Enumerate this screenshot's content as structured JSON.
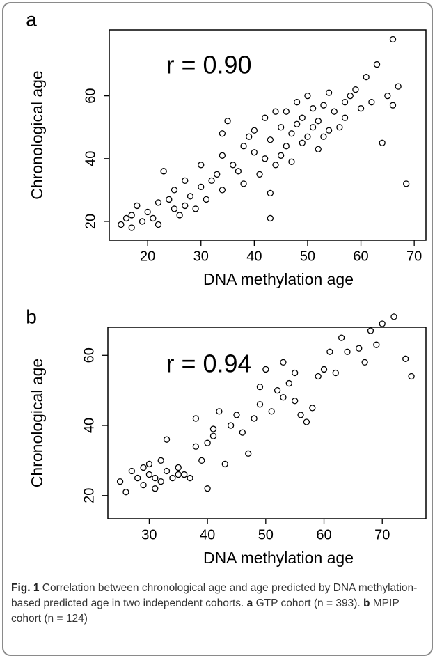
{
  "chart_data": [
    {
      "type": "scatter",
      "panel_label": "a",
      "annotation": "r = 0.90",
      "x_label": "DNA methylation age",
      "y_label": "Chronological age",
      "x": [
        15,
        16,
        17,
        17,
        18,
        19,
        20,
        21,
        22,
        22,
        23,
        24,
        25,
        25,
        26,
        27,
        27,
        28,
        29,
        30,
        30,
        31,
        32,
        33,
        34,
        34,
        35,
        36,
        37,
        38,
        38,
        39,
        40,
        40,
        41,
        42,
        42,
        43,
        43,
        44,
        45,
        45,
        46,
        46,
        47,
        47,
        48,
        48,
        49,
        49,
        50,
        50,
        51,
        51,
        52,
        52,
        53,
        54,
        54,
        55,
        56,
        57,
        57,
        58,
        59,
        60,
        61,
        62,
        63,
        64,
        65,
        66,
        67,
        68.5,
        43,
        34,
        23,
        53,
        66,
        44
      ],
      "y": [
        19,
        21,
        18,
        22,
        25,
        20,
        23,
        21,
        26,
        19,
        36,
        27,
        24,
        30,
        22,
        25,
        33,
        28,
        24,
        31,
        38,
        27,
        33,
        35,
        30,
        41,
        52,
        38,
        36,
        44,
        32,
        47,
        42,
        49,
        35,
        40,
        53,
        21,
        46,
        38,
        50,
        41,
        44,
        55,
        48,
        39,
        51,
        58,
        45,
        53,
        47,
        60,
        50,
        56,
        43,
        52,
        57,
        49,
        61,
        55,
        50,
        58,
        53,
        60,
        62,
        56,
        66,
        58,
        70,
        45,
        60,
        57,
        63,
        32,
        29,
        48,
        36,
        47,
        78,
        55
      ],
      "xlim": [
        12.8,
        72.2
      ],
      "ylim": [
        14,
        81
      ],
      "xticks": [
        20,
        30,
        40,
        50,
        60,
        70
      ],
      "yticks": [
        20,
        40,
        60
      ]
    },
    {
      "type": "scatter",
      "panel_label": "b",
      "annotation": "r = 0.94",
      "x_label": "DNA methylation age",
      "y_label": "Chronological age",
      "x": [
        25,
        26,
        27,
        28,
        29,
        29,
        30,
        30,
        31,
        31,
        32,
        32,
        33,
        33,
        34,
        35,
        35,
        36,
        37,
        38,
        38,
        39,
        40,
        40,
        41,
        41,
        42,
        43,
        44,
        45,
        46,
        47,
        48,
        49,
        49,
        50,
        51,
        52,
        53,
        53,
        54,
        55,
        55,
        56,
        57,
        58,
        59,
        60,
        61,
        62,
        63,
        64,
        66,
        67,
        68,
        69,
        70,
        72,
        74,
        75
      ],
      "y": [
        24,
        21,
        27,
        25,
        28,
        23,
        26,
        29,
        22,
        25,
        24,
        30,
        27,
        36,
        25,
        28,
        26,
        26,
        25,
        34,
        42,
        30,
        35,
        22,
        37,
        39,
        44,
        29,
        40,
        43,
        38,
        32,
        42,
        46,
        51,
        56,
        44,
        50,
        48,
        58,
        52,
        47,
        55,
        43,
        41,
        45,
        54,
        56,
        61,
        55,
        65,
        61,
        62,
        58,
        67,
        63,
        69,
        71,
        59,
        54
      ],
      "xlim": [
        22.9,
        77.5
      ],
      "ylim": [
        13.4,
        68
      ],
      "xticks": [
        30,
        40,
        50,
        60,
        70
      ],
      "yticks": [
        20,
        40,
        60
      ]
    }
  ],
  "caption": {
    "label": "Fig. 1",
    "text": "Correlation between chronological age and age predicted by DNA methylation-based predicted age in two independent cohorts.",
    "a_label": "a",
    "a_text": "GTP cohort (n = 393).",
    "b_label": "b",
    "b_text": "MPIP cohort (n = 124)"
  }
}
